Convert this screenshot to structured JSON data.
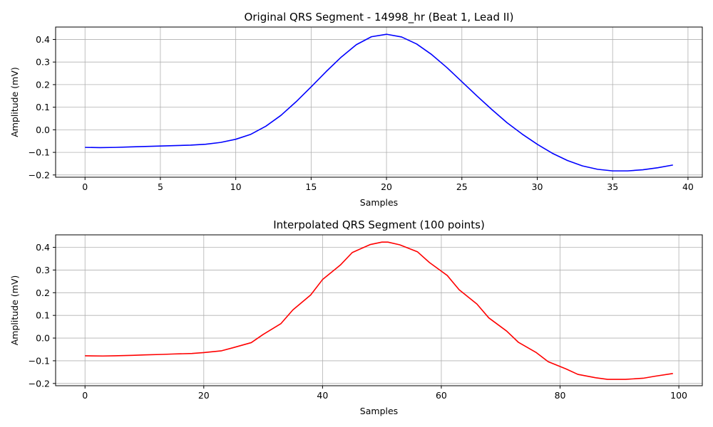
{
  "chart_data": [
    {
      "type": "line",
      "title": "Original QRS Segment - 14998_hr (Beat 1, Lead II)",
      "xlabel": "Samples",
      "ylabel": "Amplitude (mV)",
      "xlim": [
        -1.95,
        40.95
      ],
      "ylim": [
        -0.21,
        0.455
      ],
      "xticks": [
        0,
        5,
        10,
        15,
        20,
        25,
        30,
        35,
        40
      ],
      "yticks": [
        -0.2,
        -0.1,
        0.0,
        0.1,
        0.2,
        0.3,
        0.4
      ],
      "ytick_labels": [
        "−0.2",
        "−0.1",
        "0.0",
        "0.1",
        "0.2",
        "0.3",
        "0.4"
      ],
      "grid": true,
      "series": [
        {
          "color": "#0000ff",
          "x": [
            0,
            1,
            2,
            3,
            4,
            5,
            6,
            7,
            8,
            9,
            10,
            11,
            12,
            13,
            14,
            15,
            16,
            17,
            18,
            19,
            20,
            21,
            22,
            23,
            24,
            25,
            26,
            27,
            28,
            29,
            30,
            31,
            32,
            33,
            34,
            35,
            36,
            37,
            38,
            39
          ],
          "y": [
            -0.078,
            -0.079,
            -0.078,
            -0.076,
            -0.074,
            -0.072,
            -0.07,
            -0.068,
            -0.064,
            -0.056,
            -0.042,
            -0.02,
            0.016,
            0.064,
            0.124,
            0.19,
            0.258,
            0.322,
            0.377,
            0.412,
            0.423,
            0.411,
            0.38,
            0.333,
            0.276,
            0.213,
            0.15,
            0.089,
            0.031,
            -0.019,
            -0.064,
            -0.104,
            -0.136,
            -0.16,
            -0.175,
            -0.182,
            -0.182,
            -0.177,
            -0.168,
            -0.156
          ]
        }
      ]
    },
    {
      "type": "line",
      "title": "Interpolated QRS Segment (100 points)",
      "xlabel": "Samples",
      "ylabel": "Amplitude (mV)",
      "xlim": [
        -4.95,
        103.95
      ],
      "ylim": [
        -0.21,
        0.455
      ],
      "xticks": [
        0,
        20,
        40,
        60,
        80,
        100
      ],
      "yticks": [
        -0.2,
        -0.1,
        0.0,
        0.1,
        0.2,
        0.3,
        0.4
      ],
      "ytick_labels": [
        "−0.2",
        "−0.1",
        "0.0",
        "0.1",
        "0.2",
        "0.3",
        "0.4"
      ],
      "grid": true,
      "series": [
        {
          "color": "#ff0000",
          "x": [
            0,
            3,
            5,
            8,
            10,
            13,
            15,
            18,
            20,
            23,
            25,
            28,
            30,
            33,
            35,
            38,
            40,
            43,
            45,
            48,
            50,
            51,
            53,
            56,
            58,
            61,
            63,
            66,
            68,
            71,
            73,
            76,
            78,
            81,
            83,
            86,
            88,
            89,
            91,
            94,
            96,
            99
          ],
          "y": [
            -0.078,
            -0.079,
            -0.078,
            -0.076,
            -0.074,
            -0.072,
            -0.07,
            -0.068,
            -0.064,
            -0.056,
            -0.042,
            -0.02,
            0.016,
            0.064,
            0.124,
            0.19,
            0.258,
            0.322,
            0.377,
            0.412,
            0.423,
            0.423,
            0.411,
            0.38,
            0.333,
            0.276,
            0.213,
            0.15,
            0.089,
            0.031,
            -0.019,
            -0.064,
            -0.104,
            -0.136,
            -0.16,
            -0.175,
            -0.182,
            -0.182,
            -0.182,
            -0.177,
            -0.168,
            -0.156
          ]
        }
      ]
    }
  ]
}
